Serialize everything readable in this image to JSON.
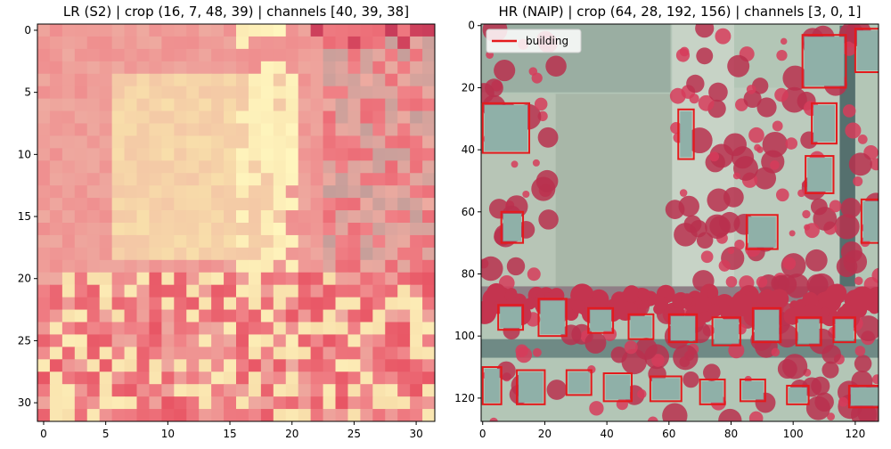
{
  "panels": [
    {
      "id": "lr",
      "title": "LR (S2) | crop (16, 7, 48, 39) | channels [40, 39, 38]",
      "grid": {
        "cols": 32,
        "rows": 32
      },
      "x_ticks": [
        0,
        5,
        10,
        15,
        20,
        25,
        30
      ],
      "y_ticks": [
        0,
        5,
        10,
        15,
        20,
        25,
        30
      ],
      "x_range": [
        -0.5,
        31.5
      ],
      "y_range": [
        -0.5,
        31.5
      ]
    },
    {
      "id": "hr",
      "title": "HR (NAIP) | crop (64, 28, 192, 156) | channels [3, 0, 1]",
      "x_ticks": [
        0,
        20,
        40,
        60,
        80,
        100,
        120
      ],
      "y_ticks": [
        0,
        20,
        40,
        60,
        80,
        100,
        120
      ],
      "x_range": [
        -0.5,
        127.5
      ],
      "y_range": [
        -0.5,
        127.5
      ],
      "legend": {
        "label": "building",
        "color": "#e41a1c",
        "placement": "upper-left"
      },
      "box_color": "#e41a1c",
      "boxes": [
        [
          103,
          3,
          117,
          20
        ],
        [
          120,
          1,
          128,
          15
        ],
        [
          0,
          25,
          15,
          41
        ],
        [
          63,
          27,
          68,
          43
        ],
        [
          106,
          25,
          114,
          38
        ],
        [
          104,
          42,
          113,
          54
        ],
        [
          6,
          60,
          13,
          70
        ],
        [
          85,
          61,
          95,
          72
        ],
        [
          122,
          56,
          128,
          70
        ],
        [
          5,
          90,
          13,
          98
        ],
        [
          18,
          88,
          27,
          100
        ],
        [
          34,
          91,
          42,
          99
        ],
        [
          47,
          93,
          55,
          101
        ],
        [
          60,
          93,
          69,
          102
        ],
        [
          74,
          94,
          83,
          103
        ],
        [
          87,
          91,
          96,
          102
        ],
        [
          101,
          94,
          109,
          103
        ],
        [
          113,
          94,
          120,
          102
        ],
        [
          0,
          110,
          6,
          122
        ],
        [
          11,
          111,
          20,
          122
        ],
        [
          27,
          111,
          35,
          119
        ],
        [
          39,
          112,
          48,
          121
        ],
        [
          54,
          113,
          64,
          121
        ],
        [
          70,
          114,
          78,
          122
        ],
        [
          83,
          114,
          91,
          121
        ],
        [
          98,
          116,
          105,
          122
        ],
        [
          118,
          116,
          128,
          123
        ]
      ]
    }
  ]
}
